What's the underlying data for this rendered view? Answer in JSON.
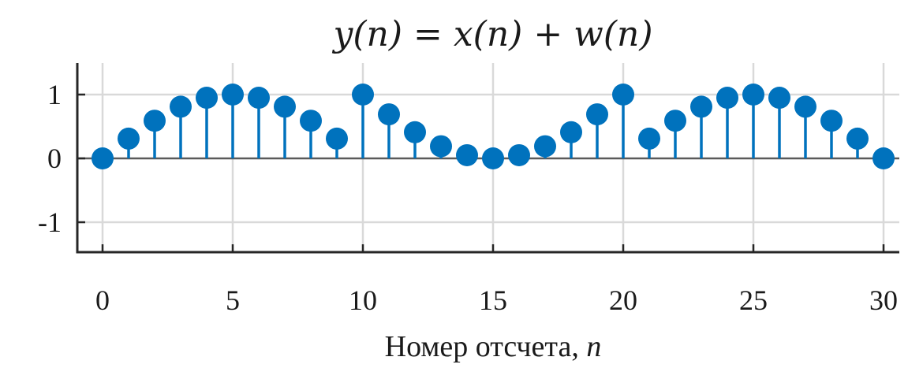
{
  "chart_data": {
    "type": "stem",
    "title": "y(n) = x(n) + w(n)",
    "xlabel": "Номер отсчета, ",
    "xlabel_var": "n",
    "ylabel": "",
    "xlim": [
      0,
      30
    ],
    "ylim": [
      -1.5,
      1.5
    ],
    "xticks": [
      0,
      5,
      10,
      15,
      20,
      25,
      30
    ],
    "yticks": [
      -1,
      0,
      1
    ],
    "xtick_labels": [
      "0",
      "5",
      "10",
      "15",
      "20",
      "25",
      "30"
    ],
    "ytick_labels": [
      "-1",
      "0",
      "1"
    ],
    "grid": true,
    "color": "#0072BD",
    "series": [
      {
        "x": [
          0,
          1,
          2,
          3,
          4,
          5,
          6,
          7,
          8,
          9,
          10,
          11,
          12,
          13,
          14,
          15,
          16,
          17,
          18,
          19,
          20,
          21,
          22,
          23,
          24,
          25,
          26,
          27,
          28,
          29,
          30
        ],
        "y": [
          0,
          0.31,
          0.59,
          0.81,
          0.95,
          1.0,
          0.95,
          0.81,
          0.59,
          0.31,
          1.0,
          0.69,
          0.41,
          0.19,
          0.05,
          0.0,
          0.05,
          0.19,
          0.41,
          0.69,
          1.0,
          0.31,
          0.59,
          0.81,
          0.95,
          1.0,
          0.95,
          0.81,
          0.59,
          0.31,
          0.0
        ]
      }
    ]
  }
}
